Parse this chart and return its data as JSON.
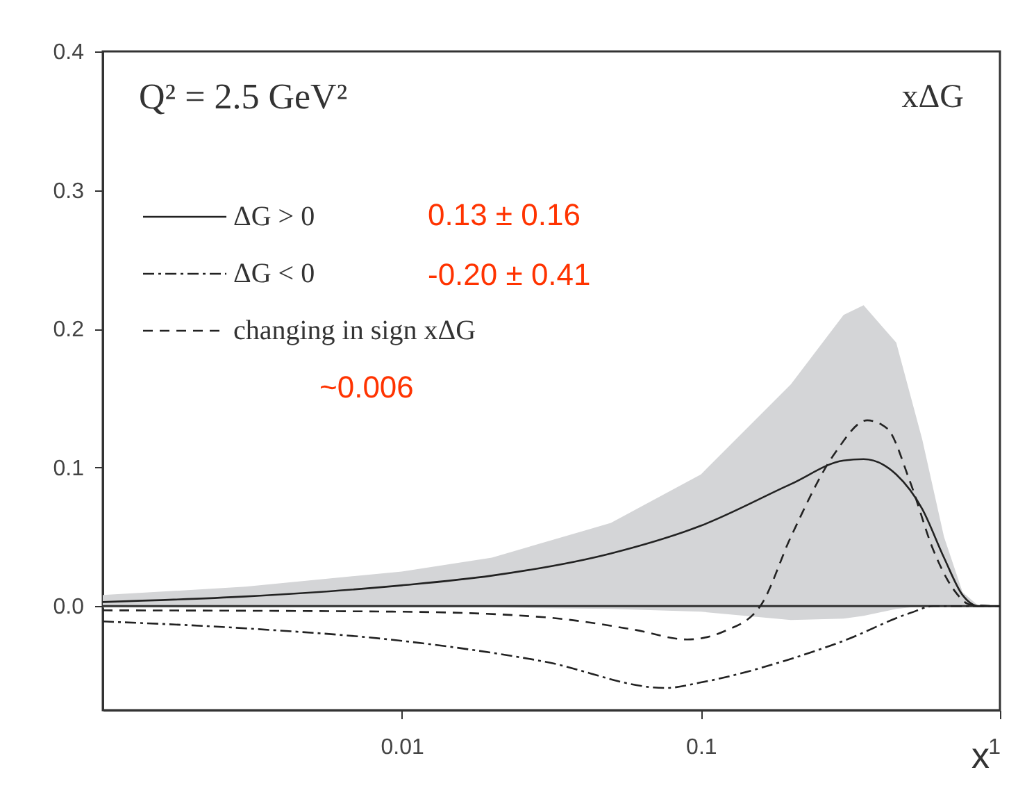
{
  "chart_data": {
    "type": "line",
    "xlabel": "x",
    "log": "x",
    "legend": "top left",
    "grid": false,
    "xlim": [
      0.001,
      1
    ],
    "xticks": [
      0.01,
      0.1,
      1
    ],
    "ylim": [
      -0.075,
      0.4
    ],
    "yticks": [
      {
        "value": 0,
        "label": "0.0"
      },
      0.1,
      0.2,
      0.3,
      0.4
    ],
    "annotations": [
      "Q² = 2.5 GeV²",
      "xΔG",
      "0.13 ± 0.16",
      "-0.20 ± 0.41",
      "~0.006"
    ],
    "ref_lines": [
      {
        "axis": "y",
        "value": 0,
        "color": "#333333"
      }
    ],
    "series": [
      {
        "name": "ΔG > 0",
        "color": "#222222",
        "line_style": "solid",
        "x": [
          0.001,
          0.003,
          0.01,
          0.02,
          0.05,
          0.1,
          0.2,
          0.3,
          0.35,
          0.45,
          0.55,
          0.65,
          0.75,
          0.85,
          1
        ],
        "values": [
          0.003,
          0.007,
          0.015,
          0.022,
          0.038,
          0.058,
          0.088,
          0.105,
          0.106,
          0.095,
          0.07,
          0.035,
          0.008,
          0.0,
          0.0
        ],
        "lower": [
          -0.001,
          -0.001,
          -0.001,
          -0.001,
          -0.002,
          -0.004,
          -0.01,
          -0.009,
          -0.007,
          -0.002,
          0.0,
          0.0,
          0.0,
          0.0,
          0.0
        ],
        "upper": [
          0.008,
          0.014,
          0.025,
          0.035,
          0.06,
          0.095,
          0.16,
          0.21,
          0.217,
          0.19,
          0.12,
          0.05,
          0.01,
          0.0,
          0.0
        ]
      },
      {
        "name": "ΔG < 0",
        "color": "#222222",
        "line_style": "dashdot",
        "x": [
          0.001,
          0.003,
          0.01,
          0.03,
          0.076,
          0.1,
          0.2,
          0.3,
          0.5,
          0.6,
          1
        ],
        "values": [
          -0.011,
          -0.016,
          -0.025,
          -0.04,
          -0.059,
          -0.055,
          -0.038,
          -0.025,
          -0.005,
          0.0,
          0.0
        ]
      },
      {
        "name": "changing in sign xΔG",
        "color": "#222222",
        "line_style": "dashed",
        "x": [
          0.001,
          0.01,
          0.03,
          0.06,
          0.09,
          0.12,
          0.158,
          0.2,
          0.28,
          0.36,
          0.42,
          0.5,
          0.6,
          0.7,
          0.8,
          1
        ],
        "values": [
          -0.003,
          -0.004,
          -0.008,
          -0.017,
          -0.024,
          -0.018,
          0.0,
          0.05,
          0.11,
          0.134,
          0.128,
          0.09,
          0.04,
          0.012,
          0.001,
          0.0
        ]
      }
    ]
  }
}
